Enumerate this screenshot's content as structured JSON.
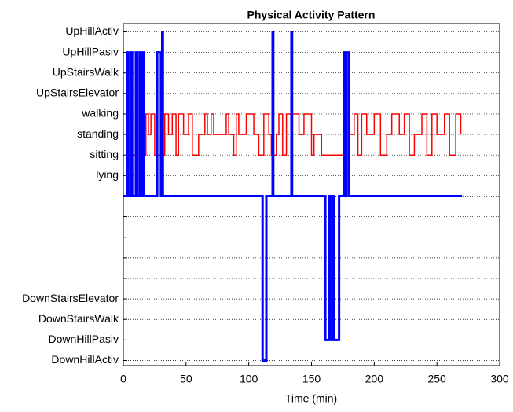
{
  "chart_data": {
    "type": "line",
    "title": "Physical Activity Pattern",
    "x_label": "Time (min)",
    "xlim": [
      0,
      300
    ],
    "xticks": [
      0,
      50,
      100,
      150,
      200,
      250,
      300
    ],
    "ylim": [
      -8.25,
      8.4
    ],
    "yticks": [
      {
        "value": 8,
        "label": "UpHillActiv"
      },
      {
        "value": 7,
        "label": "UpHillPasiv"
      },
      {
        "value": 6,
        "label": "UpStairsWalk"
      },
      {
        "value": 5,
        "label": "UpStairsElevator"
      },
      {
        "value": 4,
        "label": "walking"
      },
      {
        "value": 3,
        "label": "standing"
      },
      {
        "value": 2,
        "label": "sitting"
      },
      {
        "value": 1,
        "label": "lying"
      },
      {
        "value": 0,
        "label": null
      },
      {
        "value": -1,
        "label": null
      },
      {
        "value": -2,
        "label": null
      },
      {
        "value": -3,
        "label": null
      },
      {
        "value": -4,
        "label": null
      },
      {
        "value": -5,
        "label": "DownStairsElevator"
      },
      {
        "value": -6,
        "label": "DownStairsWalk"
      },
      {
        "value": -7,
        "label": "DownHillPasiv"
      },
      {
        "value": -8,
        "label": "DownHillActiv"
      }
    ],
    "grid": true,
    "series": [
      {
        "color": "#ff0000",
        "width": 1.5,
        "x": [
          2,
          18,
          18,
          20,
          20,
          22,
          22,
          25,
          25,
          33,
          33,
          36,
          36,
          39,
          39,
          42,
          42,
          44,
          44,
          48,
          48,
          52,
          52,
          55,
          55,
          60,
          60,
          65,
          65,
          67,
          67,
          70,
          70,
          72,
          72,
          82,
          82,
          84,
          84,
          88,
          88,
          90,
          90,
          92,
          92,
          98,
          98,
          104,
          104,
          108,
          108,
          112,
          112,
          116,
          116,
          118,
          118,
          122,
          122,
          124,
          124,
          127,
          127,
          130,
          130,
          140,
          140,
          144,
          144,
          150,
          150,
          152,
          152,
          158,
          158,
          178,
          178,
          180,
          180,
          184,
          184,
          187,
          187,
          190,
          190,
          194,
          194,
          200,
          200,
          205,
          205,
          210,
          210,
          214,
          214,
          220,
          220,
          224,
          224,
          228,
          228,
          232,
          232,
          238,
          238,
          242,
          242,
          246,
          246,
          250,
          250,
          256,
          256,
          260,
          260,
          265,
          265,
          269,
          269
        ],
        "values": [
          2,
          2,
          4,
          4,
          3,
          3,
          4,
          4,
          2,
          2,
          4,
          4,
          3,
          3,
          4,
          4,
          2,
          2,
          4,
          4,
          3,
          3,
          4,
          4,
          2,
          2,
          3,
          3,
          4,
          4,
          3,
          3,
          4,
          4,
          3,
          3,
          4,
          4,
          3,
          3,
          2,
          2,
          4,
          4,
          3,
          3,
          4,
          4,
          3,
          3,
          2,
          2,
          4,
          4,
          3,
          3,
          2,
          2,
          3,
          3,
          4,
          4,
          2,
          2,
          4,
          4,
          3,
          3,
          4,
          4,
          2,
          2,
          3,
          3,
          2,
          2,
          4,
          4,
          3,
          3,
          4,
          4,
          2,
          2,
          4,
          4,
          3,
          3,
          4,
          4,
          2,
          2,
          3,
          3,
          4,
          4,
          3,
          3,
          4,
          4,
          2,
          2,
          3,
          3,
          4,
          4,
          2,
          2,
          4,
          4,
          3,
          3,
          4,
          4,
          2,
          2,
          4,
          4,
          3
        ]
      },
      {
        "color": "#0000ff",
        "width": 3,
        "x": [
          0,
          3,
          3,
          4,
          4,
          6,
          6,
          7,
          7,
          10,
          10,
          11,
          11,
          13,
          13,
          14,
          14,
          15,
          15,
          16,
          16,
          27,
          27,
          30,
          30,
          31,
          31,
          31.5,
          31.5,
          111,
          111,
          114,
          114,
          119,
          119,
          119.5,
          119.5,
          134,
          134,
          134.5,
          134.5,
          161,
          161,
          164,
          164,
          165,
          165,
          167,
          167,
          168,
          168,
          172,
          172,
          176,
          176,
          177,
          177,
          178,
          178,
          180,
          180,
          270
        ],
        "values": [
          0,
          0,
          7,
          7,
          0,
          0,
          7,
          7,
          0,
          0,
          7,
          7,
          0,
          0,
          7,
          7,
          0,
          0,
          7,
          7,
          0,
          0,
          7,
          7,
          0,
          0,
          8,
          8,
          0,
          0,
          -8,
          -8,
          0,
          0,
          8,
          8,
          0,
          0,
          8,
          8,
          0,
          0,
          -7,
          -7,
          0,
          0,
          -7,
          -7,
          0,
          0,
          -7,
          -7,
          0,
          0,
          7,
          7,
          0,
          0,
          7,
          7,
          0,
          0
        ]
      }
    ]
  }
}
